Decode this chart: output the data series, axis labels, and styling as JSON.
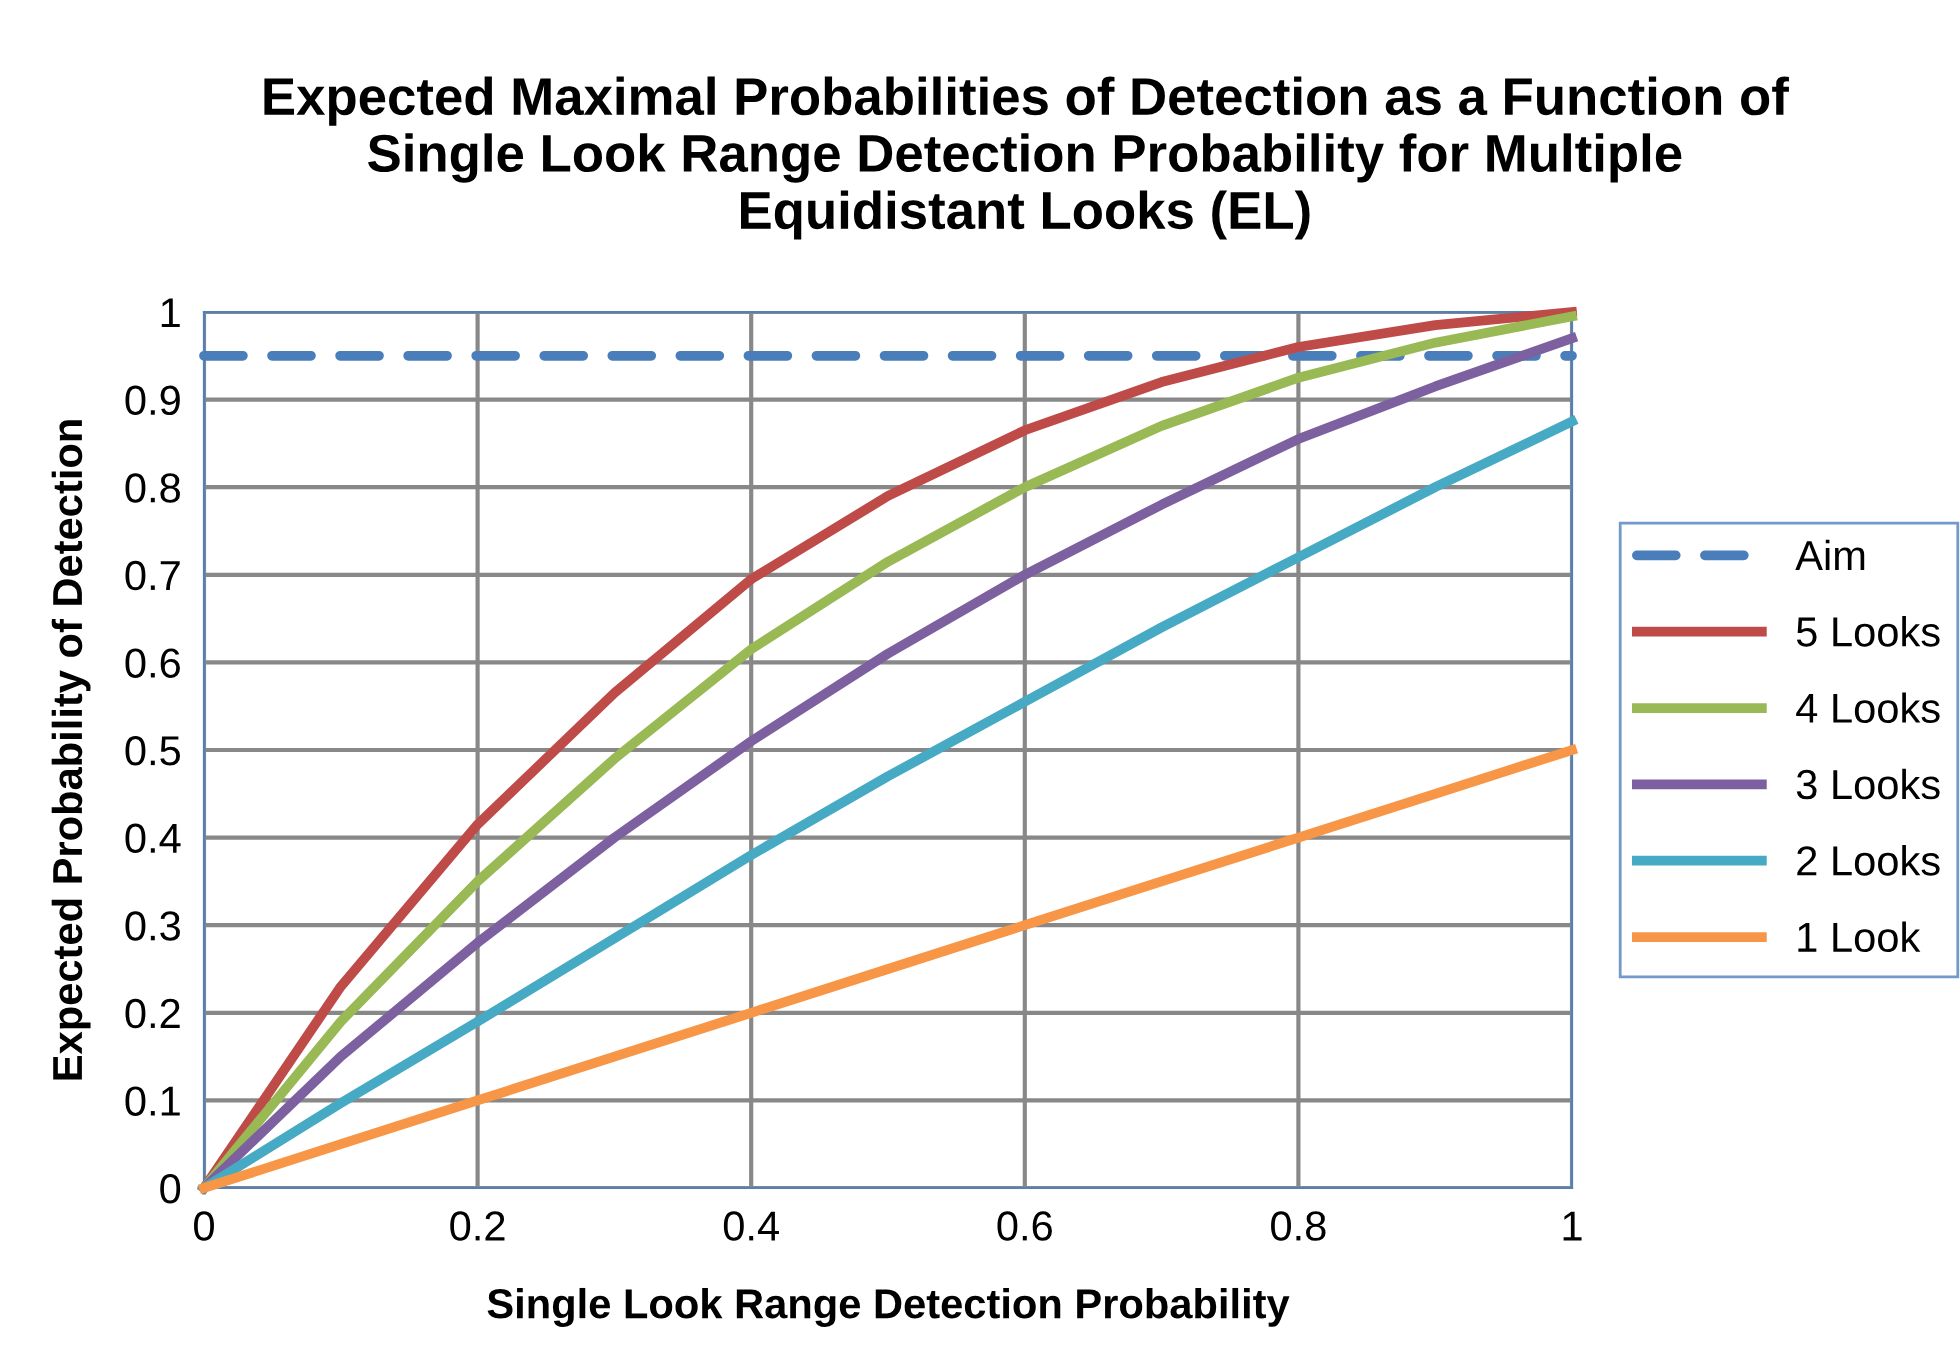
{
  "chart_data": {
    "type": "line",
    "title": "Expected Maximal Probabilities of Detection as a Function of\nSingle Look Range Detection Probability for Multiple\nEquidistant Looks (EL)",
    "xlabel": "Single Look Range Detection Probability",
    "ylabel": "Expected Probability of Detection",
    "x": [
      0,
      0.1,
      0.2,
      0.3,
      0.4,
      0.5,
      0.6,
      0.7,
      0.8,
      0.9,
      1
    ],
    "series": [
      {
        "name": "Aim",
        "color": "#4a7ebb",
        "line_style": "dashed",
        "values": [
          0.95,
          0.95,
          0.95,
          0.95,
          0.95,
          0.95,
          0.95,
          0.95,
          0.95,
          0.95,
          0.95
        ]
      },
      {
        "name": "5 Looks",
        "color": "#be4b48",
        "values": [
          0,
          0.23,
          0.415,
          0.565,
          0.695,
          0.79,
          0.865,
          0.92,
          0.96,
          0.985,
          1.0
        ]
      },
      {
        "name": "4 Looks",
        "color": "#98b954",
        "values": [
          0,
          0.19,
          0.35,
          0.49,
          0.615,
          0.715,
          0.8,
          0.87,
          0.925,
          0.965,
          0.995
        ]
      },
      {
        "name": "3 Looks",
        "color": "#7d60a0",
        "values": [
          0,
          0.15,
          0.28,
          0.4,
          0.51,
          0.61,
          0.7,
          0.78,
          0.855,
          0.915,
          0.97
        ]
      },
      {
        "name": "2 Looks",
        "color": "#46aac5",
        "values": [
          0,
          0.097,
          0.19,
          0.285,
          0.38,
          0.47,
          0.555,
          0.64,
          0.72,
          0.8,
          0.875
        ]
      },
      {
        "name": "1 Look",
        "color": "#f79646",
        "values": [
          0,
          0.05,
          0.1,
          0.15,
          0.2,
          0.25,
          0.3,
          0.35,
          0.4,
          0.45,
          0.5
        ]
      }
    ],
    "xlim": [
      0,
      1
    ],
    "xticks": [
      0,
      0.2,
      0.4,
      0.6,
      0.8,
      1
    ],
    "ylim": [
      0,
      1
    ],
    "yticks": [
      0,
      0.1,
      0.2,
      0.3,
      0.4,
      0.5,
      0.6,
      0.7,
      0.8,
      0.9,
      1
    ],
    "grid": true,
    "legend": "right",
    "marker": "none",
    "line_style": "solid"
  }
}
